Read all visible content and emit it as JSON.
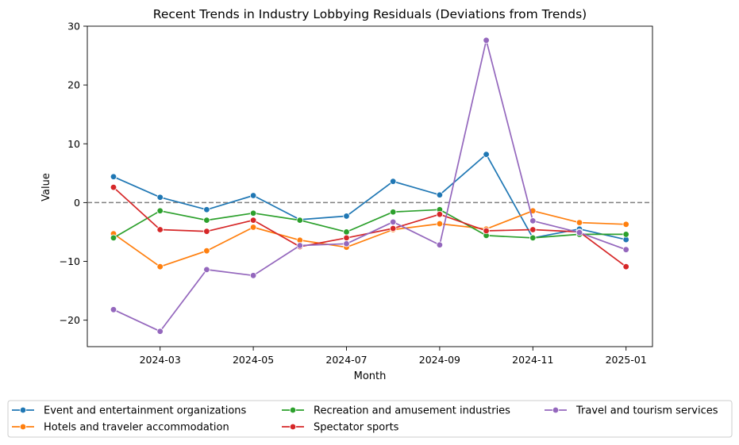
{
  "chart_data": {
    "type": "line",
    "title": "Recent Trends in Industry Lobbying Residuals (Deviations from Trends)",
    "xlabel": "Month",
    "ylabel": "Value",
    "x": [
      "2024-02",
      "2024-03",
      "2024-04",
      "2024-05",
      "2024-06",
      "2024-07",
      "2024-08",
      "2024-09",
      "2024-10",
      "2024-11",
      "2024-12",
      "2025-01"
    ],
    "xticks": [
      "2024-03",
      "2024-05",
      "2024-07",
      "2024-09",
      "2024-11",
      "2025-01"
    ],
    "yticks": [
      -20,
      -10,
      0,
      10,
      20,
      30
    ],
    "ylim": [
      -24.5,
      30
    ],
    "reference_line": 0,
    "legend_position": "bottom-center",
    "grid": false,
    "series": [
      {
        "name": "Event and entertainment organizations",
        "color": "#1f77b4",
        "values": [
          4.4,
          0.9,
          -1.2,
          1.2,
          -2.9,
          -2.3,
          3.6,
          1.3,
          8.2,
          -6.0,
          -4.5,
          -6.3
        ]
      },
      {
        "name": "Hotels and traveler accommodation",
        "color": "#ff7f0e",
        "values": [
          -5.3,
          -10.9,
          -8.2,
          -4.2,
          -6.4,
          -7.6,
          -4.6,
          -3.6,
          -4.5,
          -1.4,
          -3.4,
          -3.7
        ]
      },
      {
        "name": "Recreation and amusement industries",
        "color": "#2ca02c",
        "values": [
          -6.0,
          -1.4,
          -3.0,
          -1.8,
          -3.0,
          -5.0,
          -1.6,
          -1.2,
          -5.6,
          -6.0,
          -5.4,
          -5.4
        ]
      },
      {
        "name": "Spectator sports",
        "color": "#d62728",
        "values": [
          2.6,
          -4.6,
          -4.9,
          -3.0,
          -7.5,
          -6.0,
          -4.4,
          -2.0,
          -4.8,
          -4.6,
          -5.0,
          -10.9
        ]
      },
      {
        "name": "Travel and tourism services",
        "color": "#9467bd",
        "values": [
          -18.2,
          -21.9,
          -11.4,
          -12.4,
          -7.3,
          -7.0,
          -3.3,
          -7.2,
          27.6,
          -3.1,
          -5.1,
          -8.0
        ]
      }
    ]
  }
}
